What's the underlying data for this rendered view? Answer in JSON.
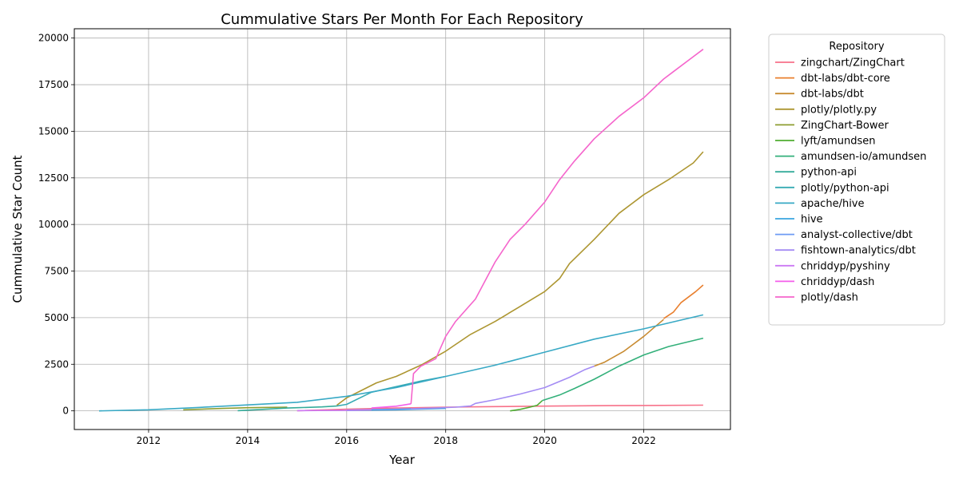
{
  "chart_data": {
    "type": "line",
    "title": "Cummulative Stars Per Month For Each Repository",
    "xlabel": "Year",
    "ylabel": "Cummulative Star Count",
    "xlim": [
      2010.5,
      2023.75
    ],
    "ylim": [
      -1000,
      20500
    ],
    "x_ticks": [
      2012,
      2014,
      2016,
      2018,
      2020,
      2022
    ],
    "y_ticks": [
      0,
      2500,
      5000,
      7500,
      10000,
      12500,
      15000,
      17500,
      20000
    ],
    "grid": true,
    "legend": {
      "title": "Repository",
      "placement": "outside-right"
    },
    "series": [
      {
        "name": "zingchart/ZingChart",
        "color": "#f77189",
        "points": [
          [
            2015.0,
            5
          ],
          [
            2016.0,
            90
          ],
          [
            2017.0,
            150
          ],
          [
            2018.0,
            200
          ],
          [
            2019.0,
            230
          ],
          [
            2020.0,
            255
          ],
          [
            2021.0,
            275
          ],
          [
            2022.0,
            290
          ],
          [
            2023.2,
            305
          ]
        ]
      },
      {
        "name": "dbt-labs/dbt-core",
        "color": "#e9802f",
        "points": [
          [
            2022.4,
            4950
          ],
          [
            2022.6,
            5300
          ],
          [
            2022.75,
            5800
          ],
          [
            2022.9,
            6100
          ],
          [
            2023.05,
            6400
          ],
          [
            2023.2,
            6750
          ]
        ]
      },
      {
        "name": "dbt-labs/dbt",
        "color": "#c88b31",
        "points": [
          [
            2021.0,
            2400
          ],
          [
            2021.2,
            2600
          ],
          [
            2021.4,
            2900
          ],
          [
            2021.6,
            3200
          ],
          [
            2021.8,
            3600
          ],
          [
            2022.0,
            4000
          ],
          [
            2022.2,
            4450
          ],
          [
            2022.4,
            4900
          ]
        ]
      },
      {
        "name": "plotly/plotly.py",
        "color": "#ad9631",
        "points": [
          [
            2015.8,
            300
          ],
          [
            2016.0,
            700
          ],
          [
            2016.3,
            1100
          ],
          [
            2016.6,
            1500
          ],
          [
            2017.0,
            1850
          ],
          [
            2017.5,
            2450
          ],
          [
            2018.0,
            3200
          ],
          [
            2018.5,
            4100
          ],
          [
            2019.0,
            4800
          ],
          [
            2019.5,
            5600
          ],
          [
            2020.0,
            6400
          ],
          [
            2020.3,
            7100
          ],
          [
            2020.5,
            7900
          ],
          [
            2021.0,
            9200
          ],
          [
            2021.5,
            10600
          ],
          [
            2022.0,
            11600
          ],
          [
            2022.5,
            12400
          ],
          [
            2023.0,
            13300
          ],
          [
            2023.2,
            13900
          ]
        ]
      },
      {
        "name": "ZingChart-Bower",
        "color": "#8e9e31",
        "points": [
          [
            2012.7,
            60
          ],
          [
            2013.5,
            130
          ],
          [
            2014.0,
            170
          ],
          [
            2014.8,
            200
          ]
        ]
      },
      {
        "name": "lyft/amundsen",
        "color": "#4fad31",
        "points": [
          [
            2019.3,
            0
          ],
          [
            2019.5,
            80
          ],
          [
            2019.7,
            200
          ],
          [
            2019.85,
            300
          ],
          [
            2019.95,
            550
          ]
        ]
      },
      {
        "name": "amundsen-io/amundsen",
        "color": "#33b07a",
        "points": [
          [
            2019.95,
            550
          ],
          [
            2020.3,
            850
          ],
          [
            2020.6,
            1200
          ],
          [
            2021.0,
            1700
          ],
          [
            2021.5,
            2400
          ],
          [
            2022.0,
            3000
          ],
          [
            2022.5,
            3450
          ],
          [
            2023.2,
            3900
          ]
        ]
      },
      {
        "name": "python-api",
        "color": "#35ac9b",
        "points": [
          [
            2013.8,
            10
          ],
          [
            2014.3,
            80
          ],
          [
            2014.8,
            150
          ],
          [
            2015.0,
            170
          ],
          [
            2015.5,
            210
          ],
          [
            2015.8,
            260
          ]
        ]
      },
      {
        "name": "plotly/python-api",
        "color": "#37abb4",
        "points": [
          [
            2015.8,
            260
          ],
          [
            2016.0,
            350
          ],
          [
            2016.5,
            1000
          ],
          [
            2017.0,
            1300
          ],
          [
            2017.5,
            1600
          ],
          [
            2018.0,
            1850
          ]
        ]
      },
      {
        "name": "apache/hive",
        "color": "#38a9c5",
        "points": [
          [
            2011.0,
            0
          ],
          [
            2012.0,
            60
          ],
          [
            2013.0,
            180
          ],
          [
            2014.0,
            320
          ],
          [
            2015.0,
            460
          ],
          [
            2016.0,
            780
          ],
          [
            2017.0,
            1250
          ],
          [
            2018.0,
            1850
          ],
          [
            2019.0,
            2450
          ],
          [
            2020.0,
            3150
          ],
          [
            2021.0,
            3850
          ],
          [
            2022.0,
            4400
          ],
          [
            2023.2,
            5150
          ]
        ]
      },
      {
        "name": "hive",
        "color": "#3aa5df",
        "points": [
          [
            2016.0,
            20
          ],
          [
            2016.5,
            40
          ],
          [
            2017.0,
            60
          ],
          [
            2017.5,
            90
          ],
          [
            2018.0,
            130
          ]
        ]
      },
      {
        "name": "analyst-collective/dbt",
        "color": "#6e9bf4",
        "points": [
          [
            2016.0,
            40
          ],
          [
            2016.5,
            70
          ],
          [
            2017.0,
            90
          ],
          [
            2017.3,
            110
          ]
        ]
      },
      {
        "name": "fishtown-analytics/dbt",
        "color": "#a48cf4",
        "points": [
          [
            2017.3,
            110
          ],
          [
            2017.8,
            150
          ],
          [
            2018.2,
            200
          ],
          [
            2018.5,
            260
          ],
          [
            2018.6,
            400
          ],
          [
            2019.0,
            600
          ],
          [
            2019.5,
            900
          ],
          [
            2020.0,
            1250
          ],
          [
            2020.5,
            1800
          ],
          [
            2020.8,
            2200
          ],
          [
            2021.0,
            2400
          ]
        ]
      },
      {
        "name": "chriddyp/pyshiny",
        "color": "#cc79f4",
        "points": [
          [
            2015.0,
            10
          ],
          [
            2016.0,
            30
          ],
          [
            2016.5,
            60
          ]
        ]
      },
      {
        "name": "chriddyp/dash",
        "color": "#f45deb",
        "points": [
          [
            2016.5,
            150
          ],
          [
            2017.0,
            250
          ],
          [
            2017.3,
            380
          ]
        ]
      },
      {
        "name": "plotly/dash",
        "color": "#f565cc",
        "points": [
          [
            2017.3,
            380
          ],
          [
            2017.35,
            2000
          ],
          [
            2017.5,
            2400
          ],
          [
            2017.8,
            2800
          ],
          [
            2018.0,
            4000
          ],
          [
            2018.2,
            4800
          ],
          [
            2018.6,
            6000
          ],
          [
            2019.0,
            8000
          ],
          [
            2019.3,
            9200
          ],
          [
            2019.6,
            10000
          ],
          [
            2020.0,
            11200
          ],
          [
            2020.3,
            12400
          ],
          [
            2020.6,
            13400
          ],
          [
            2021.0,
            14600
          ],
          [
            2021.5,
            15800
          ],
          [
            2022.0,
            16800
          ],
          [
            2022.4,
            17800
          ],
          [
            2022.6,
            18200
          ],
          [
            2023.0,
            19000
          ],
          [
            2023.2,
            19400
          ]
        ]
      }
    ]
  }
}
